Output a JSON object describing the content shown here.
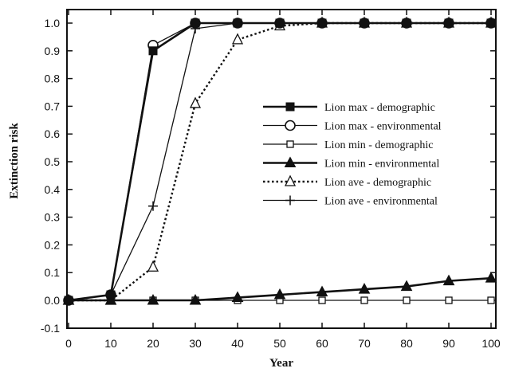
{
  "chart_data": {
    "type": "line",
    "xlabel": "Year",
    "ylabel": "Extinction risk",
    "xlim": [
      0,
      100
    ],
    "ylim": [
      -0.1,
      1.0
    ],
    "x_ticks": [
      "0",
      "10",
      "20",
      "30",
      "40",
      "50",
      "60",
      "70",
      "80",
      "90",
      "100"
    ],
    "y_ticks": [
      "-0.1",
      "0.0",
      "0.1",
      "0.2",
      "0.3",
      "0.4",
      "0.5",
      "0.6",
      "0.7",
      "0.8",
      "0.9",
      "1.0"
    ],
    "grid": false,
    "legend_position": "center-right",
    "x": [
      0,
      10,
      20,
      30,
      40,
      50,
      60,
      70,
      80,
      90,
      100
    ],
    "series": [
      {
        "name": "Lion max - demographic",
        "marker": "filled-square",
        "line": "solid-thick",
        "values": [
          0,
          0.02,
          0.9,
          1.0,
          1.0,
          1.0,
          1.0,
          1.0,
          1.0,
          1.0,
          1.0
        ]
      },
      {
        "name": "Lion max - environmental",
        "marker": "open-circle",
        "line": "solid",
        "values": [
          0,
          0.02,
          0.92,
          1.0,
          1.0,
          1.0,
          1.0,
          1.0,
          1.0,
          1.0,
          1.0
        ]
      },
      {
        "name": "Lion min - demographic",
        "marker": "open-square",
        "line": "solid",
        "values": [
          0,
          0,
          0,
          0,
          0,
          0,
          0,
          0,
          0,
          0,
          0
        ]
      },
      {
        "name": "Lion min - environmental",
        "marker": "filled-triangle",
        "line": "solid-thick",
        "values": [
          0,
          0,
          0,
          0,
          0.01,
          0.02,
          0.03,
          0.04,
          0.05,
          0.07,
          0.08
        ]
      },
      {
        "name": "Lion ave - demographic",
        "marker": "open-triangle",
        "line": "dotted",
        "values": [
          0,
          0,
          0.12,
          0.71,
          0.94,
          0.99,
          1.0,
          1.0,
          1.0,
          1.0,
          1.0
        ]
      },
      {
        "name": "Lion ave - environmental",
        "marker": "plus",
        "line": "solid",
        "values": [
          0,
          0.02,
          0.34,
          0.98,
          1.0,
          1.0,
          1.0,
          1.0,
          1.0,
          1.0,
          1.0
        ]
      }
    ]
  }
}
